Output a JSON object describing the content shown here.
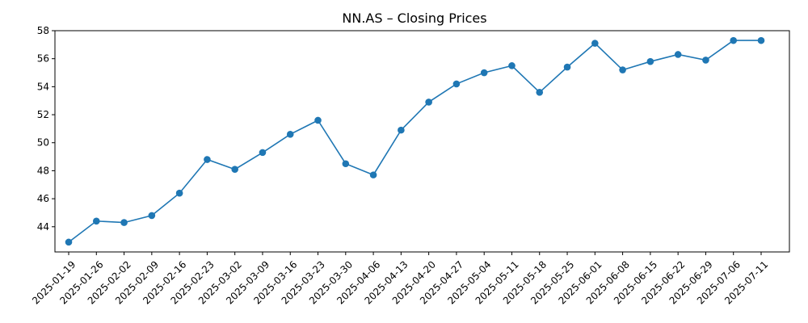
{
  "chart_data": {
    "type": "line",
    "title": "NN.AS – Closing Prices",
    "xlabel": "",
    "ylabel": "",
    "x": [
      "2025-01-19",
      "2025-01-26",
      "2025-02-02",
      "2025-02-09",
      "2025-02-16",
      "2025-02-23",
      "2025-03-02",
      "2025-03-09",
      "2025-03-16",
      "2025-03-23",
      "2025-03-30",
      "2025-04-06",
      "2025-04-13",
      "2025-04-20",
      "2025-04-27",
      "2025-05-04",
      "2025-05-11",
      "2025-05-18",
      "2025-05-25",
      "2025-06-01",
      "2025-06-08",
      "2025-06-15",
      "2025-06-22",
      "2025-06-29",
      "2025-07-06",
      "2025-07-11"
    ],
    "series": [
      {
        "values": [
          42.9,
          44.4,
          44.3,
          44.8,
          46.4,
          48.8,
          48.1,
          49.3,
          50.6,
          51.6,
          48.5,
          47.7,
          50.9,
          52.9,
          54.2,
          55.0,
          55.5,
          53.6,
          55.4,
          57.1,
          55.2,
          55.8,
          56.3,
          55.9,
          57.3,
          57.3
        ],
        "color": "#1f77b4"
      }
    ],
    "ylim": [
      42.2,
      58.0
    ],
    "yticks": [
      44,
      46,
      48,
      50,
      52,
      54,
      56,
      58
    ],
    "grid": false,
    "marker": "circle"
  }
}
